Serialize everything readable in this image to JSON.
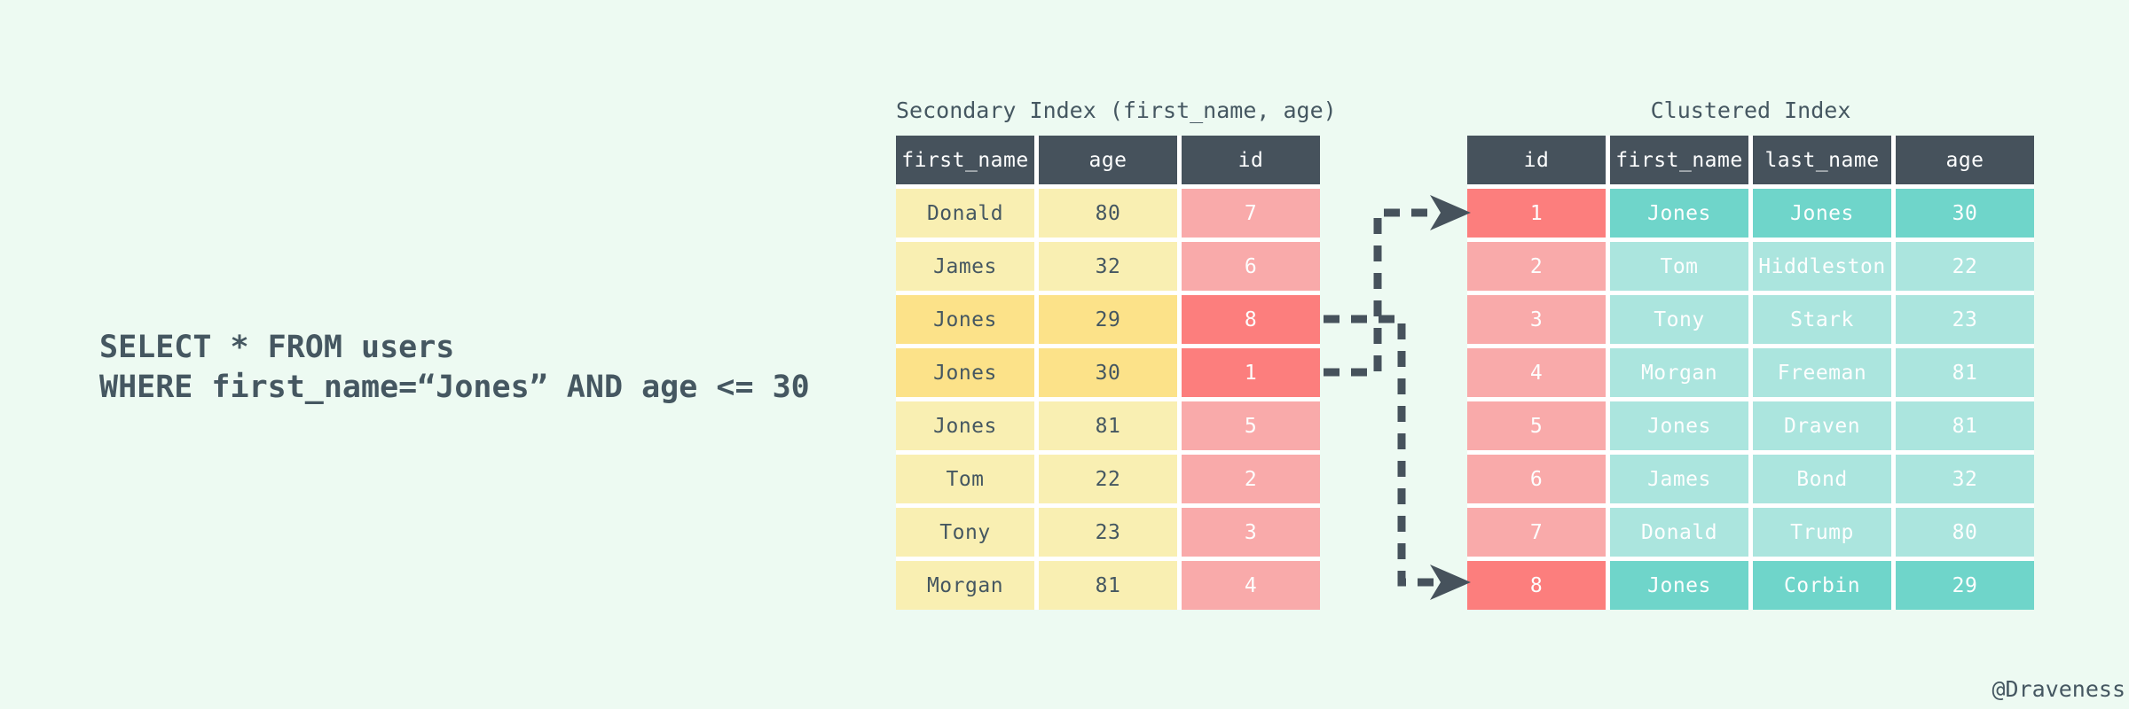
{
  "colors": {
    "background": "#edfaf2",
    "slate": "#46525c",
    "text_dark": "#455761",
    "yellow": "#f9efb2",
    "yellow_highlight": "#fce289",
    "pink": "#f9aaaa",
    "red_highlight": "#fc7e7d",
    "teal": "#abe5de",
    "teal_highlight": "#6fd5ca",
    "text_light": "#fdfefe",
    "gap_white": "#ffffff"
  },
  "sql": {
    "line1": "SELECT * FROM users",
    "line2": "WHERE first_name=“Jones” AND age <= 30"
  },
  "secondary_index": {
    "title": "Secondary Index (first_name, age)",
    "columns": [
      "first_name",
      "age",
      "id"
    ],
    "column_roles": [
      "entry",
      "entry",
      "pointer"
    ],
    "rows": [
      {
        "cells": [
          "Donald",
          "80",
          "7"
        ],
        "highlight": false
      },
      {
        "cells": [
          "James",
          "32",
          "6"
        ],
        "highlight": false
      },
      {
        "cells": [
          "Jones",
          "29",
          "8"
        ],
        "highlight": true
      },
      {
        "cells": [
          "Jones",
          "30",
          "1"
        ],
        "highlight": true
      },
      {
        "cells": [
          "Jones",
          "81",
          "5"
        ],
        "highlight": false
      },
      {
        "cells": [
          "Tom",
          "22",
          "2"
        ],
        "highlight": false
      },
      {
        "cells": [
          "Tony",
          "23",
          "3"
        ],
        "highlight": false
      },
      {
        "cells": [
          "Morgan",
          "81",
          "4"
        ],
        "highlight": false
      }
    ]
  },
  "clustered_index": {
    "title": "Clustered Index",
    "columns": [
      "id",
      "first_name",
      "last_name",
      "age"
    ],
    "column_roles": [
      "key",
      "record",
      "record",
      "record"
    ],
    "rows": [
      {
        "cells": [
          "1",
          "Jones",
          "Jones",
          "30"
        ],
        "highlight": true
      },
      {
        "cells": [
          "2",
          "Tom",
          "Hiddleston",
          "22"
        ],
        "highlight": false
      },
      {
        "cells": [
          "3",
          "Tony",
          "Stark",
          "23"
        ],
        "highlight": false
      },
      {
        "cells": [
          "4",
          "Morgan",
          "Freeman",
          "81"
        ],
        "highlight": false
      },
      {
        "cells": [
          "5",
          "Jones",
          "Draven",
          "81"
        ],
        "highlight": false
      },
      {
        "cells": [
          "6",
          "James",
          "Bond",
          "32"
        ],
        "highlight": false
      },
      {
        "cells": [
          "7",
          "Donald",
          "Trump",
          "80"
        ],
        "highlight": false
      },
      {
        "cells": [
          "8",
          "Jones",
          "Corbin",
          "29"
        ],
        "highlight": true
      }
    ]
  },
  "connections": [
    {
      "from_secondary_id": "1",
      "to_clustered_row_id": "1"
    },
    {
      "from_secondary_id": "8",
      "to_clustered_row_id": "8"
    }
  ],
  "credit": "@Draveness"
}
